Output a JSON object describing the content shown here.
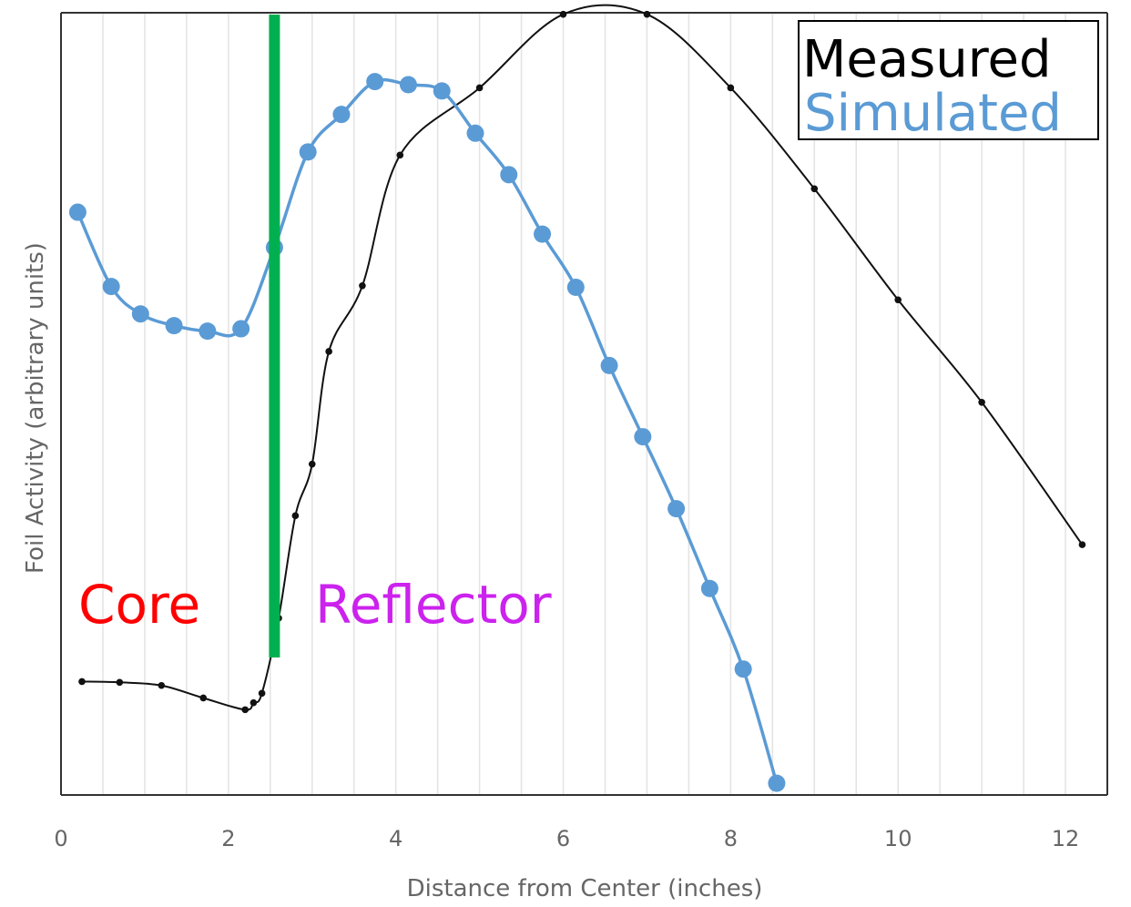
{
  "chart_data": {
    "type": "line",
    "xlabel": "Distance from Center (inches)",
    "ylabel": "Foil Activity (arbitrary units)",
    "xlim": [
      0,
      12.5
    ],
    "ylim": [
      0,
      1
    ],
    "x_ticks": [
      "0",
      "2",
      "4",
      "6",
      "8",
      "10",
      "12"
    ],
    "y_ticks": [],
    "grid": "vertical minor gridlines every 0.5 inch",
    "legend_position": "top-right",
    "series": [
      {
        "name": "Measured",
        "color": "#111111",
        "marker": "small dot",
        "x": [
          0.25,
          0.7,
          1.2,
          1.7,
          2.2,
          2.3,
          2.4,
          2.6,
          2.8,
          3.0,
          3.2,
          3.6,
          4.05,
          5.0,
          6.0,
          7.0,
          8.0,
          9.0,
          10.0,
          11.0,
          12.2
        ],
        "y": [
          0.145,
          0.144,
          0.14,
          0.124,
          0.109,
          0.118,
          0.13,
          0.226,
          0.357,
          0.423,
          0.567,
          0.651,
          0.818,
          0.904,
          0.998,
          0.998,
          0.904,
          0.775,
          0.633,
          0.502,
          0.32
        ]
      },
      {
        "name": "Simulated",
        "color": "#5b9bd5",
        "marker": "large dot",
        "x": [
          0.2,
          0.6,
          0.95,
          1.35,
          1.75,
          2.15,
          2.55,
          2.95,
          3.35,
          3.75,
          4.15,
          4.55,
          4.95,
          5.35,
          5.75,
          6.15,
          6.55,
          6.95,
          7.35,
          7.75,
          8.15,
          8.55
        ],
        "y": [
          0.745,
          0.65,
          0.615,
          0.6,
          0.593,
          0.596,
          0.7,
          0.822,
          0.87,
          0.912,
          0.908,
          0.9,
          0.846,
          0.793,
          0.717,
          0.649,
          0.549,
          0.458,
          0.366,
          0.264,
          0.161,
          0.015
        ]
      }
    ],
    "annotations": [
      {
        "text": "Core",
        "color": "#ff0000"
      },
      {
        "text": "Reflector",
        "color": "#cc22ee"
      }
    ],
    "boundary_line": {
      "x": 2.55,
      "color": "#00b050"
    }
  }
}
